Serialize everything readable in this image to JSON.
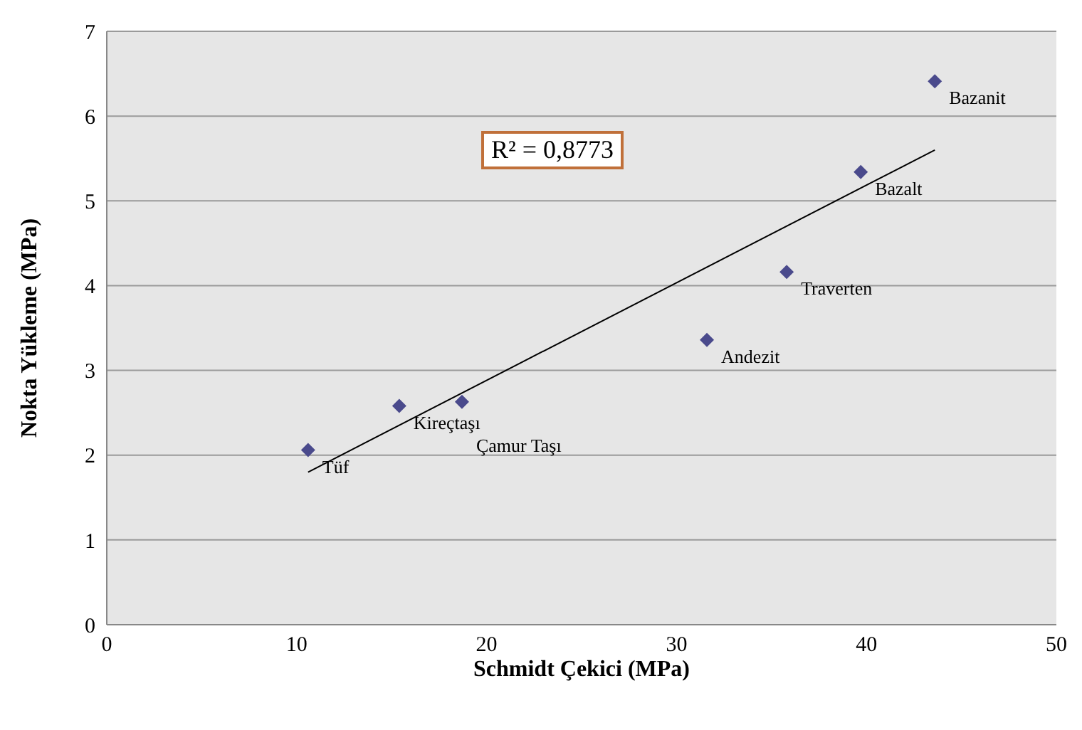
{
  "chart_data": {
    "type": "scatter",
    "xlabel": "Schmidt Çekici (MPa)",
    "ylabel": "Nokta Yükleme (MPa)",
    "xlim": [
      0,
      50
    ],
    "xticks": [
      0,
      10,
      20,
      30,
      40,
      50
    ],
    "ylim": [
      0,
      7
    ],
    "yticks": [
      0,
      1,
      2,
      3,
      4,
      5,
      6,
      7
    ],
    "grid": "y",
    "legend": false,
    "series": [
      {
        "color": "#4a4a8c",
        "marker": "diamond",
        "x": [
          10.6,
          15.4,
          18.7,
          31.6,
          35.8,
          39.7,
          43.6
        ],
        "values": [
          2.06,
          2.58,
          2.63,
          3.36,
          4.16,
          5.34,
          6.41
        ]
      },
      {
        "type": "line",
        "color": "#000000",
        "marker": "none",
        "line_style": "solid",
        "x": [
          10.6,
          43.6
        ],
        "values": [
          1.8,
          5.6
        ]
      }
    ],
    "annotations": [
      {
        "text": "Tüf",
        "x": 10.6,
        "y": 2.06
      },
      {
        "text": "Kireçtaşı",
        "x": 15.4,
        "y": 2.58
      },
      {
        "text": "Çamur Taşı",
        "x": 18.7,
        "y": 2.63
      },
      {
        "text": "Andezit",
        "x": 31.6,
        "y": 3.36
      },
      {
        "text": "Traverten",
        "x": 35.8,
        "y": 4.16
      },
      {
        "text": "Bazalt",
        "x": 39.7,
        "y": 5.34
      },
      {
        "text": "Bazanit",
        "x": 43.6,
        "y": 6.41
      },
      "R² = 0,8773"
    ]
  }
}
